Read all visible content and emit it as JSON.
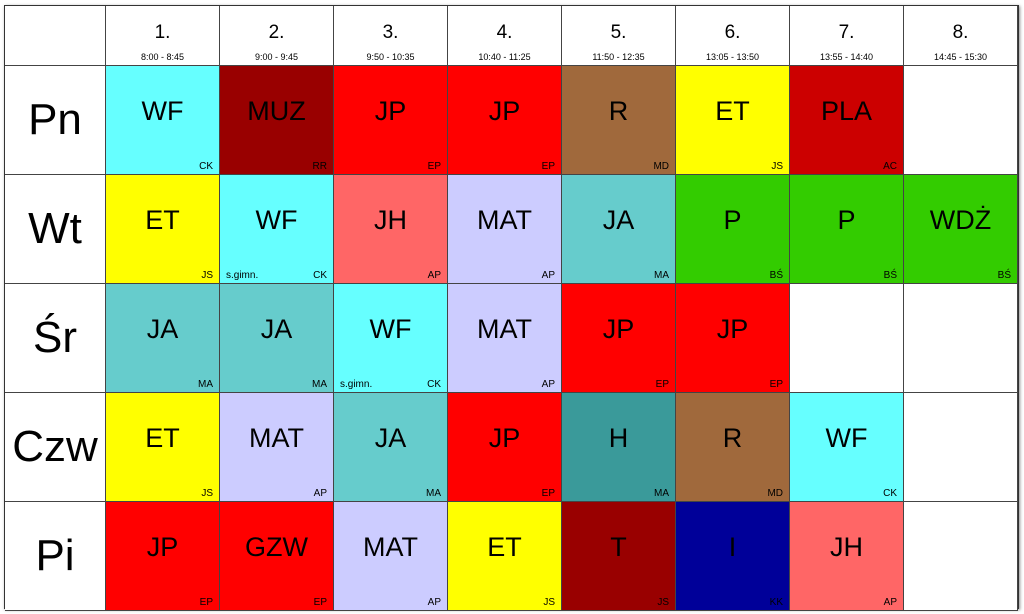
{
  "periods": [
    {
      "num": "1.",
      "time": "8:00 - 8:45"
    },
    {
      "num": "2.",
      "time": "9:00 - 9:45"
    },
    {
      "num": "3.",
      "time": "9:50 - 10:35"
    },
    {
      "num": "4.",
      "time": "10:40 - 11:25"
    },
    {
      "num": "5.",
      "time": "11:50 - 12:35"
    },
    {
      "num": "6.",
      "time": "13:05 - 13:50"
    },
    {
      "num": "7.",
      "time": "13:55 - 14:40"
    },
    {
      "num": "8.",
      "time": "14:45 - 15:30"
    }
  ],
  "days": [
    {
      "label": "Pn",
      "lessons": [
        {
          "subject": "WF",
          "teacher": "CK",
          "color": "#66ffff"
        },
        {
          "subject": "MUZ",
          "teacher": "RR",
          "color": "#990000"
        },
        {
          "subject": "JP",
          "teacher": "EP",
          "color": "#ff0000"
        },
        {
          "subject": "JP",
          "teacher": "EP",
          "color": "#ff0000"
        },
        {
          "subject": "R",
          "teacher": "MD",
          "color": "#a0693c"
        },
        {
          "subject": "ET",
          "teacher": "JS",
          "color": "#ffff00"
        },
        {
          "subject": "PLA",
          "teacher": "AC",
          "color": "#cc0000"
        },
        null
      ]
    },
    {
      "label": "Wt",
      "lessons": [
        {
          "subject": "ET",
          "teacher": "JS",
          "color": "#ffff00"
        },
        {
          "subject": "WF",
          "teacher": "CK",
          "room": "s.gimn.",
          "color": "#66ffff"
        },
        {
          "subject": "JH",
          "teacher": "AP",
          "color": "#ff6666"
        },
        {
          "subject": "MAT",
          "teacher": "AP",
          "color": "#ccccff"
        },
        {
          "subject": "JA",
          "teacher": "MA",
          "color": "#66cccc"
        },
        {
          "subject": "P",
          "teacher": "BŚ",
          "color": "#33cc00"
        },
        {
          "subject": "P",
          "teacher": "BŚ",
          "color": "#33cc00"
        },
        {
          "subject": "WDŻ",
          "teacher": "BŚ",
          "color": "#33cc00"
        }
      ]
    },
    {
      "label": "Śr",
      "lessons": [
        {
          "subject": "JA",
          "teacher": "MA",
          "color": "#66cccc"
        },
        {
          "subject": "JA",
          "teacher": "MA",
          "color": "#66cccc"
        },
        {
          "subject": "WF",
          "teacher": "CK",
          "room": "s.gimn.",
          "color": "#66ffff"
        },
        {
          "subject": "MAT",
          "teacher": "AP",
          "color": "#ccccff"
        },
        {
          "subject": "JP",
          "teacher": "EP",
          "color": "#ff0000"
        },
        {
          "subject": "JP",
          "teacher": "EP",
          "color": "#ff0000"
        },
        null,
        null
      ]
    },
    {
      "label": "Czw",
      "lessons": [
        {
          "subject": "ET",
          "teacher": "JS",
          "color": "#ffff00"
        },
        {
          "subject": "MAT",
          "teacher": "AP",
          "color": "#ccccff"
        },
        {
          "subject": "JA",
          "teacher": "MA",
          "color": "#66cccc"
        },
        {
          "subject": "JP",
          "teacher": "EP",
          "color": "#ff0000"
        },
        {
          "subject": "H",
          "teacher": "MA",
          "color": "#3a9a9a"
        },
        {
          "subject": "R",
          "teacher": "MD",
          "color": "#a0693c"
        },
        {
          "subject": "WF",
          "teacher": "CK",
          "color": "#66ffff"
        },
        null
      ]
    },
    {
      "label": "Pi",
      "lessons": [
        {
          "subject": "JP",
          "teacher": "EP",
          "color": "#ff0000"
        },
        {
          "subject": "GZW",
          "teacher": "EP",
          "color": "#ff0000"
        },
        {
          "subject": "MAT",
          "teacher": "AP",
          "color": "#ccccff"
        },
        {
          "subject": "ET",
          "teacher": "JS",
          "color": "#ffff00"
        },
        {
          "subject": "T",
          "teacher": "JS",
          "color": "#990000"
        },
        {
          "subject": "I",
          "teacher": "KK",
          "color": "#000099"
        },
        {
          "subject": "JH",
          "teacher": "AP",
          "color": "#ff6666"
        },
        null
      ]
    }
  ]
}
